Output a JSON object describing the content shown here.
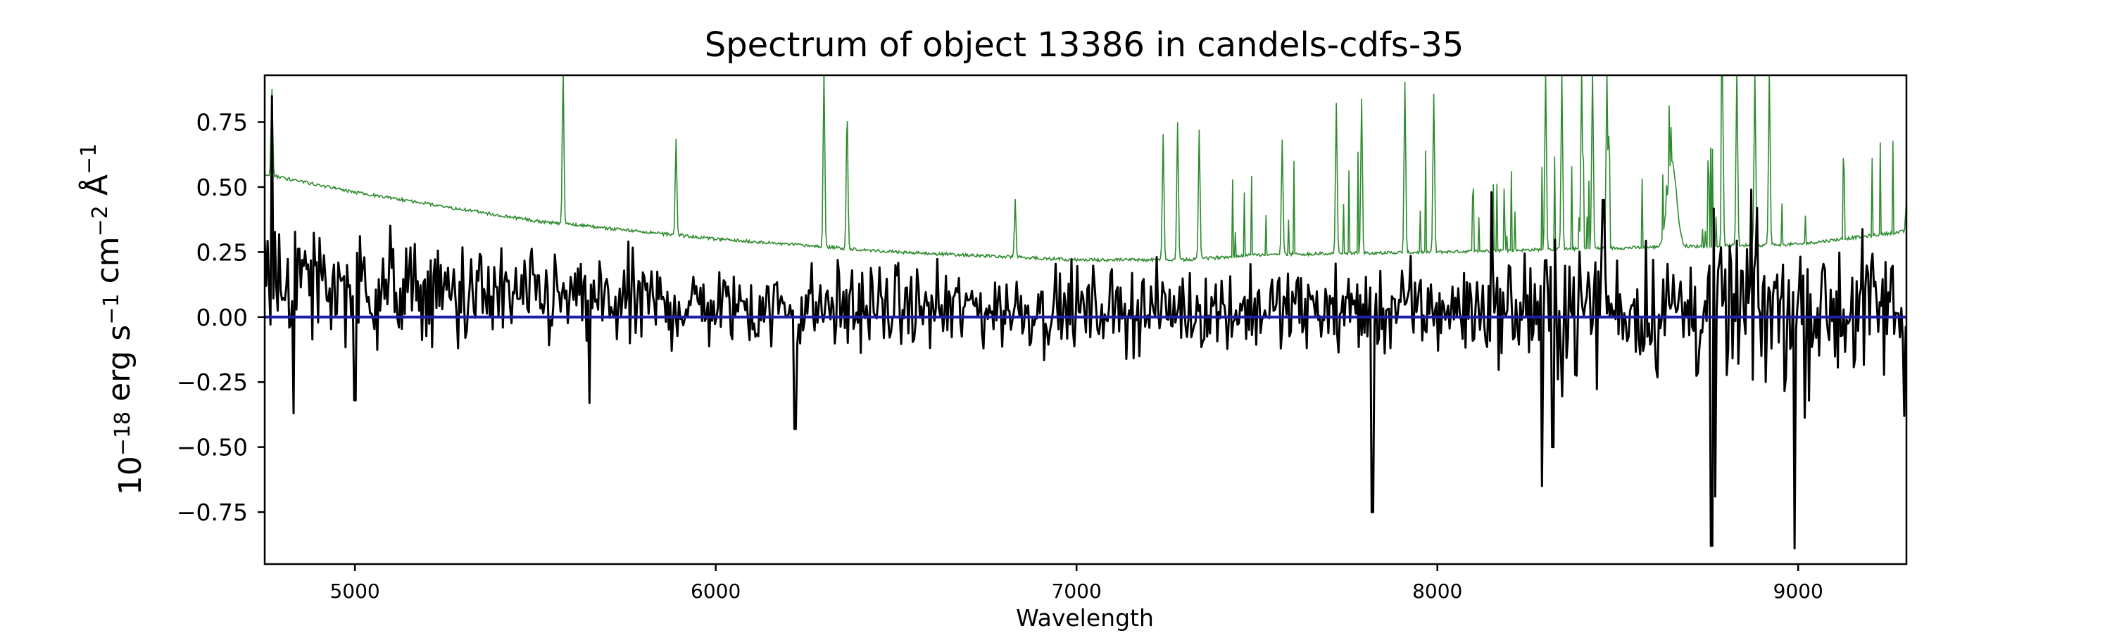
{
  "chart_data": {
    "type": "line",
    "title": "Spectrum of object 13386 in candels-cdfs-35",
    "xlabel": "Wavelength",
    "ylabel": {
      "base": "10",
      "exp": "−18",
      "parts": [
        {
          "text": " erg s",
          "sup": "−1"
        },
        {
          "text": " cm",
          "sup": "−2"
        },
        {
          "text": " Å",
          "sup": "−1"
        }
      ]
    },
    "xlim": [
      4750,
      9300
    ],
    "ylim": [
      -0.95,
      0.93
    ],
    "x_ticks": [
      5000,
      6000,
      7000,
      8000,
      9000
    ],
    "y_ticks": [
      0.75,
      0.5,
      0.25,
      0.0,
      -0.25,
      -0.5,
      -0.75
    ],
    "y_tick_labels": [
      "0.75",
      "0.50",
      "0.25",
      "0.00",
      "−0.25",
      "−0.50",
      "−0.75"
    ],
    "grid": false,
    "colors": {
      "flux": "#000000",
      "sky": "#2e8b2e",
      "zero": "#1f1fa8"
    },
    "series": [
      {
        "key": "flux",
        "x_start": 4750,
        "x_end": 9300,
        "baseline_points": [
          [
            4750,
            0.15
          ],
          [
            5200,
            0.09
          ],
          [
            6000,
            0.04
          ],
          [
            7000,
            0.03
          ],
          [
            8000,
            0.03
          ],
          [
            9300,
            0.03
          ]
        ],
        "noise_points": [
          [
            4750,
            0.17
          ],
          [
            5500,
            0.13
          ],
          [
            6500,
            0.11
          ],
          [
            7500,
            0.11
          ],
          [
            8200,
            0.13
          ],
          [
            8300,
            0.2
          ],
          [
            8500,
            0.16
          ],
          [
            8700,
            0.2
          ],
          [
            9000,
            0.22
          ],
          [
            9300,
            0.18
          ]
        ],
        "features": [
          {
            "x": 4770,
            "y": 0.85
          },
          {
            "x": 4830,
            "y": -0.37
          },
          {
            "x": 5000,
            "y": -0.32
          },
          {
            "x": 5650,
            "y": -0.33
          },
          {
            "x": 6220,
            "y": -0.43
          },
          {
            "x": 7820,
            "y": -0.75
          },
          {
            "x": 8290,
            "y": -0.65
          },
          {
            "x": 8760,
            "y": -0.88
          },
          {
            "x": 8770,
            "y": -0.69
          },
          {
            "x": 8990,
            "y": -0.89
          },
          {
            "x": 9295,
            "y": -0.38
          },
          {
            "x": 8150,
            "y": 0.48
          },
          {
            "x": 8460,
            "y": 0.45
          },
          {
            "x": 8870,
            "y": 0.49
          },
          {
            "x": 8320,
            "y": -0.5
          }
        ]
      },
      {
        "key": "sky",
        "continuum_points": [
          [
            4750,
            0.55
          ],
          [
            5000,
            0.48
          ],
          [
            5500,
            0.37
          ],
          [
            6000,
            0.3
          ],
          [
            6500,
            0.25
          ],
          [
            7000,
            0.22
          ],
          [
            7300,
            0.22
          ],
          [
            7500,
            0.24
          ],
          [
            8000,
            0.25
          ],
          [
            8300,
            0.26
          ],
          [
            9000,
            0.28
          ],
          [
            9300,
            0.33
          ]
        ],
        "lines": [
          {
            "x": 4770,
            "y": 0.88
          },
          {
            "x": 5577,
            "y": 0.95
          },
          {
            "x": 5890,
            "y": 0.68
          },
          {
            "x": 6300,
            "y": 0.95
          },
          {
            "x": 6364,
            "y": 0.8
          },
          {
            "x": 6830,
            "y": 0.45
          },
          {
            "x": 7240,
            "y": 0.7
          },
          {
            "x": 7280,
            "y": 0.75
          },
          {
            "x": 7340,
            "y": 0.72
          },
          {
            "x": 7570,
            "y": 0.68
          },
          {
            "x": 7720,
            "y": 0.82
          },
          {
            "x": 7790,
            "y": 0.84
          },
          {
            "x": 7910,
            "y": 0.9
          },
          {
            "x": 7990,
            "y": 0.86
          },
          {
            "x": 8300,
            "y": 0.95
          },
          {
            "x": 8345,
            "y": 0.95
          },
          {
            "x": 8400,
            "y": 0.95
          },
          {
            "x": 8430,
            "y": 0.95
          },
          {
            "x": 8470,
            "y": 0.95
          },
          {
            "x": 8790,
            "y": 0.95
          },
          {
            "x": 8830,
            "y": 0.95
          },
          {
            "x": 8880,
            "y": 0.95
          },
          {
            "x": 8920,
            "y": 0.95
          },
          {
            "x": 9300,
            "y": 0.45
          }
        ],
        "bumps": [
          {
            "x": 8650,
            "y": 0.6
          }
        ]
      },
      {
        "key": "zero",
        "y": 0.0
      }
    ]
  }
}
